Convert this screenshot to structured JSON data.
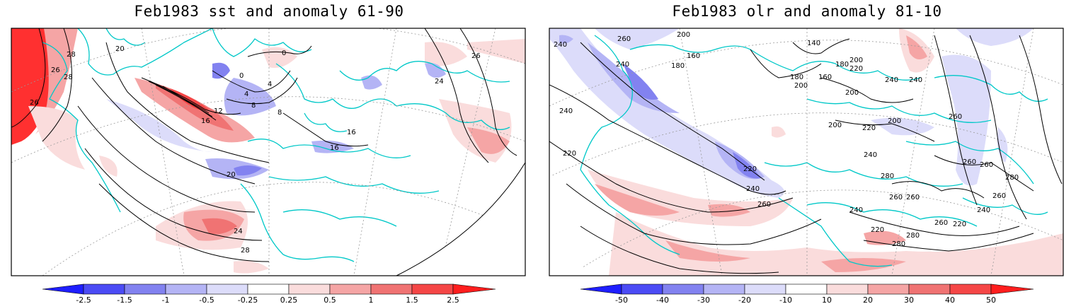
{
  "panels": [
    {
      "id": "left",
      "title": "Feb1983 sst and anomaly 61-90",
      "colorbar": {
        "ticks": [
          "-2.5",
          "-1.5",
          "-1",
          "-0.5",
          "-0.25",
          "0.25",
          "0.5",
          "1",
          "1.5",
          "2.5"
        ],
        "colors": [
          "#1e1eff",
          "#4b4bf5",
          "#8282f0",
          "#b4b4f5",
          "#dcdcfa",
          "#ffffff",
          "#fadcdc",
          "#f5a5a5",
          "#f07373",
          "#f54646",
          "#ff1e1e"
        ]
      },
      "contour_labels": [
        "28",
        "26",
        "26",
        "28",
        "20",
        "0",
        "0",
        "4",
        "4",
        "8",
        "8",
        "12",
        "16",
        "16",
        "16",
        "20",
        "24",
        "28",
        "24",
        "26"
      ]
    },
    {
      "id": "right",
      "title": "Feb1983 olr and anomaly 81-10",
      "colorbar": {
        "ticks": [
          "-50",
          "-40",
          "-30",
          "-20",
          "-10",
          "10",
          "20",
          "30",
          "40",
          "50"
        ],
        "colors": [
          "#1e1eff",
          "#4b4bf5",
          "#8282f0",
          "#b4b4f5",
          "#dcdcfa",
          "#ffffff",
          "#fadcdc",
          "#f5a5a5",
          "#f07373",
          "#f54646",
          "#ff1e1e"
        ]
      },
      "contour_labels": [
        "260",
        "240",
        "200",
        "240",
        "180",
        "160",
        "140",
        "180",
        "160",
        "200",
        "200",
        "180",
        "220",
        "240",
        "200",
        "240",
        "220",
        "200",
        "200",
        "220",
        "260",
        "240",
        "220",
        "260",
        "240",
        "260",
        "260",
        "260",
        "280",
        "260",
        "280",
        "240",
        "240",
        "220",
        "280",
        "260",
        "280",
        "220",
        "260",
        "240"
      ]
    }
  ],
  "colors": {
    "coast": "#00c8c8",
    "contour": "#000000",
    "grid": "#9a9a9a"
  }
}
